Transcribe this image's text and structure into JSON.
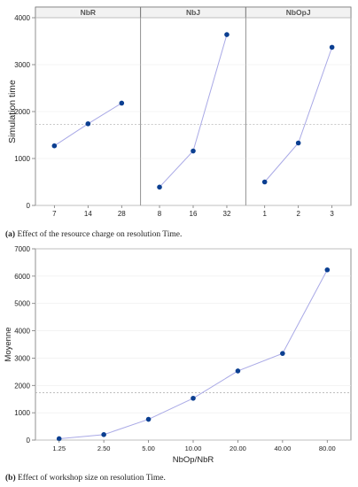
{
  "colors": {
    "marker": "#0b3f91",
    "line": "#a9a9e6",
    "reference": "#aaaaaa",
    "grid": "#ececec",
    "axis": "#777777",
    "strip": "#f2f2f2",
    "text": "#222222"
  },
  "captions": [
    {
      "label": "(a)",
      "text": "Effect of the resource charge on resolution Time."
    },
    {
      "label": "(b)",
      "text": "Effect of workshop size on resolution Time."
    }
  ],
  "chart_data": [
    {
      "type": "line",
      "ylabel": "Simulation time",
      "ylim": [
        0,
        4000
      ],
      "yticks": [
        0,
        1000,
        2000,
        3000,
        4000
      ],
      "reference_line": 1730,
      "grid": true,
      "panels": [
        {
          "name": "NbR",
          "categories": [
            "7",
            "14",
            "28"
          ],
          "values": [
            1270,
            1740,
            2180
          ]
        },
        {
          "name": "NbJ",
          "categories": [
            "8",
            "16",
            "32"
          ],
          "values": [
            390,
            1160,
            3640
          ]
        },
        {
          "name": "NbOpJ",
          "categories": [
            "1",
            "2",
            "3"
          ],
          "values": [
            500,
            1330,
            3370
          ]
        }
      ]
    },
    {
      "type": "line",
      "xlabel": "NbOp/NbR",
      "ylabel": "Moyenne",
      "ylim": [
        0,
        7000
      ],
      "yticks": [
        0,
        1000,
        2000,
        3000,
        4000,
        5000,
        6000,
        7000
      ],
      "reference_line": 1730,
      "grid": true,
      "categories": [
        "1.25",
        "2.50",
        "5.00",
        "10.00",
        "20.00",
        "40.00",
        "80.00"
      ],
      "values": [
        50,
        200,
        760,
        1530,
        2530,
        3170,
        6230
      ]
    }
  ]
}
